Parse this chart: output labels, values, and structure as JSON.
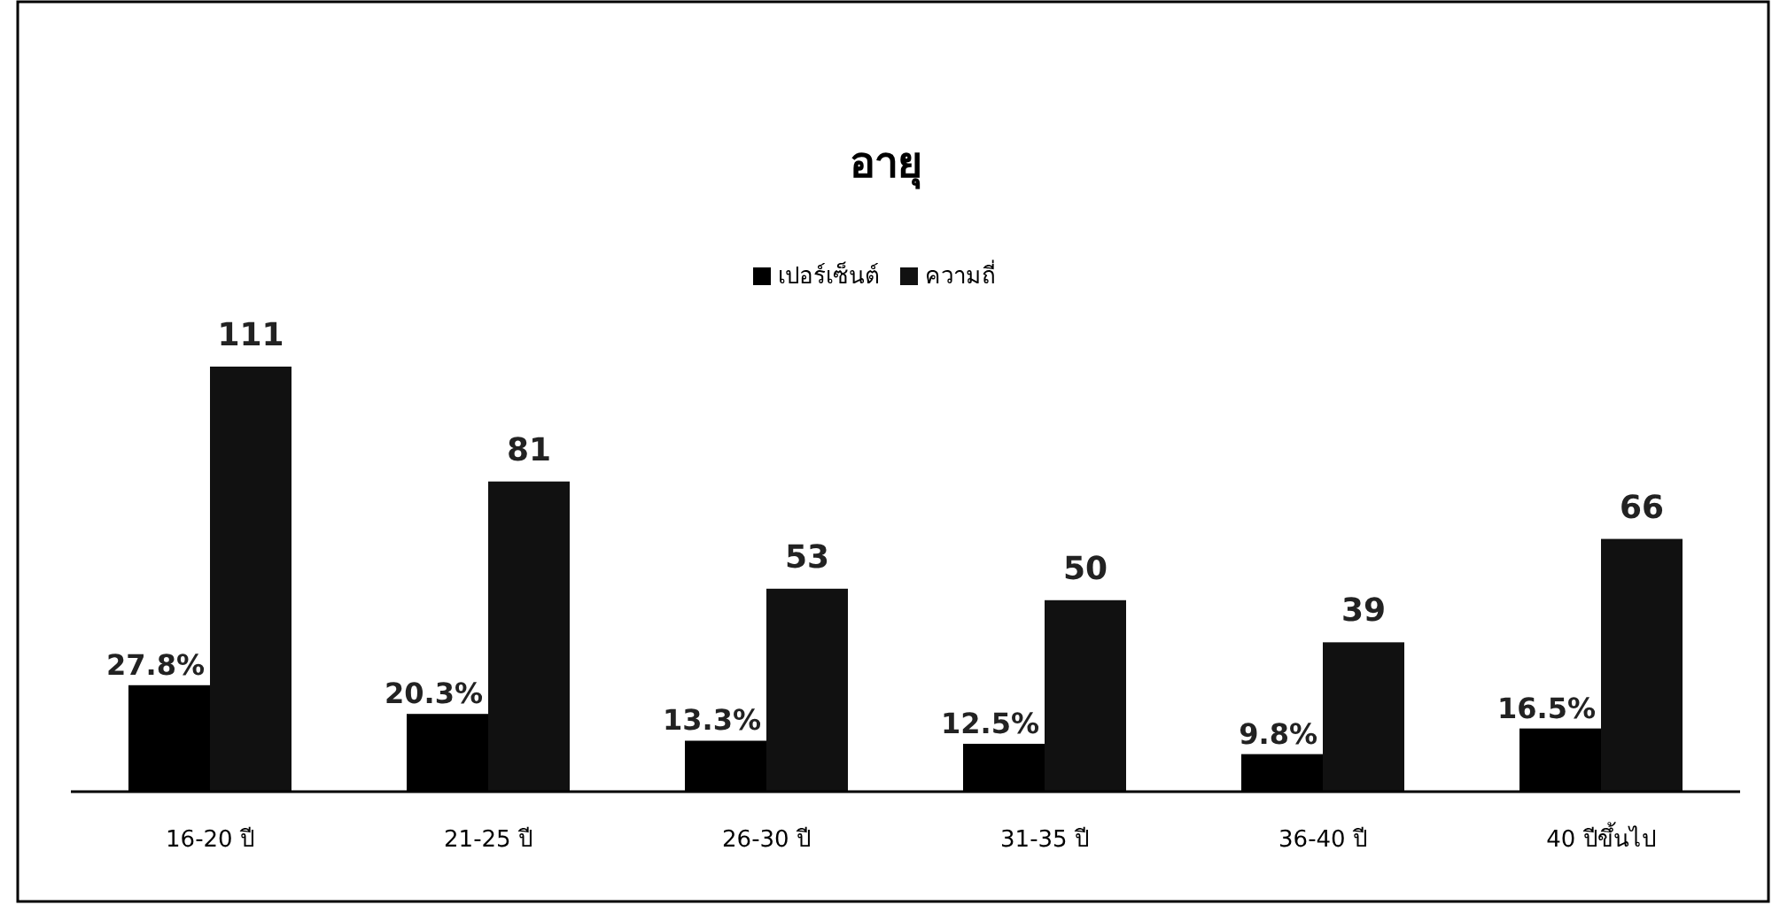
{
  "chart_data": {
    "type": "bar",
    "title": "อายุ",
    "categories": [
      "16-20 ปี",
      "21-25 ปี",
      "26-30 ปี",
      "31-35 ปี",
      "36-40 ปี",
      "40 ปีขึ้นไป"
    ],
    "series": [
      {
        "name": "เปอร์เซ็นต์",
        "color": "#000000",
        "values": [
          27.8,
          20.3,
          13.3,
          12.5,
          9.8,
          16.5
        ],
        "value_labels": [
          "27.8%",
          "20.3%",
          "13.3%",
          "12.5%",
          "9.8%",
          "16.5%"
        ]
      },
      {
        "name": "ความถี่",
        "color": "#111111",
        "values": [
          111,
          81,
          53,
          50,
          39,
          66
        ],
        "value_labels": [
          "111",
          "81",
          "53",
          "50",
          "39",
          "66"
        ]
      }
    ],
    "legend": "top",
    "grid": false
  }
}
